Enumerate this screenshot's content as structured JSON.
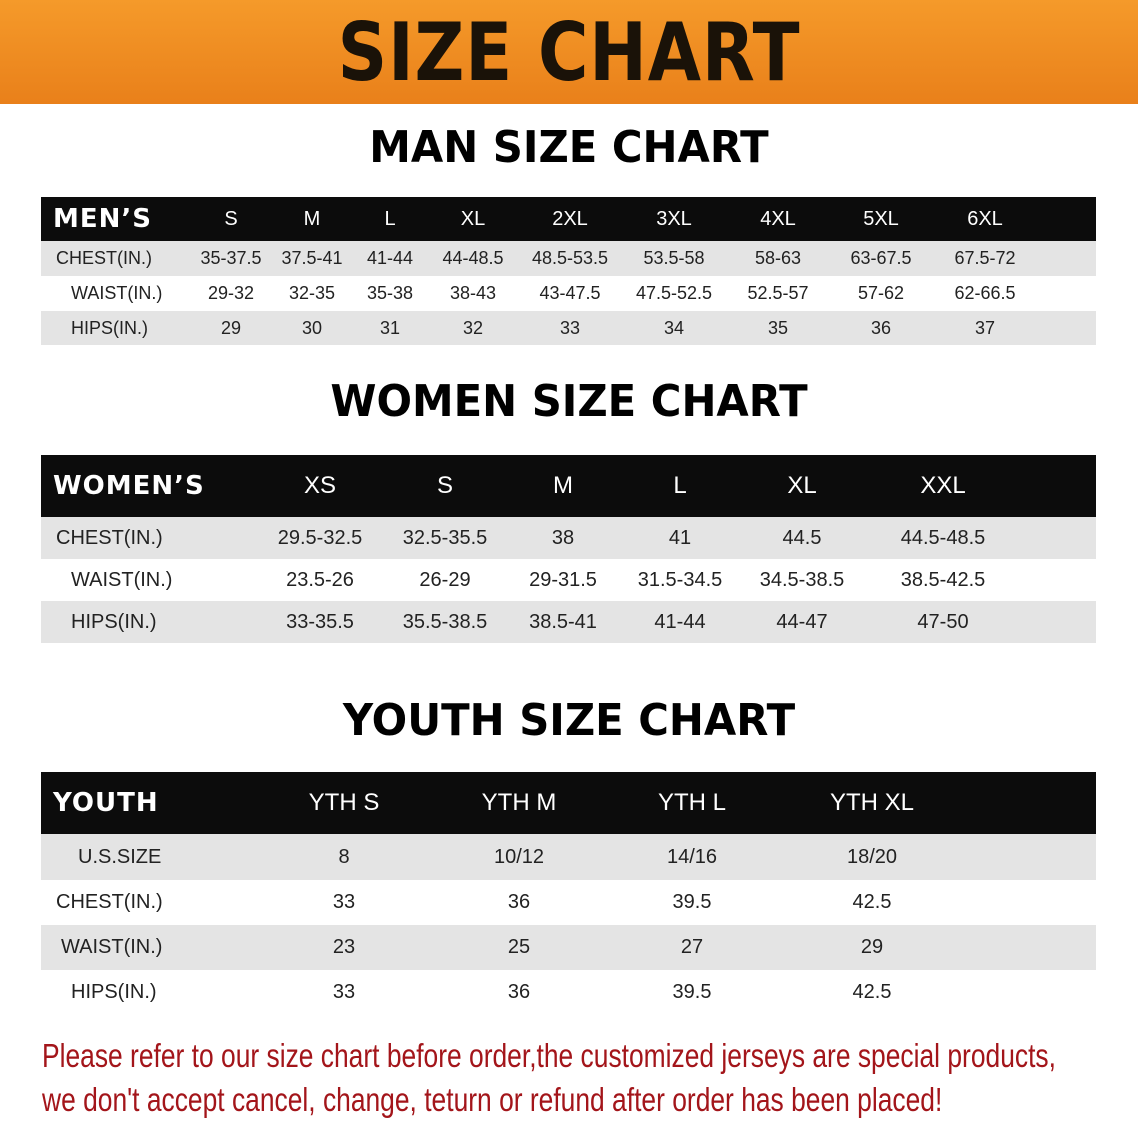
{
  "banner": "SIZE CHART",
  "men": {
    "title": "MAN SIZE CHART",
    "header": "MEN’S",
    "sizes": [
      "S",
      "M",
      "L",
      "XL",
      "2XL",
      "3XL",
      "4XL",
      "5XL",
      "6XL"
    ],
    "rows": [
      {
        "label": "CHEST(IN.)",
        "values": [
          "35-37.5",
          "37.5-41",
          "41-44",
          "44-48.5",
          "48.5-53.5",
          "53.5-58",
          "58-63",
          "63-67.5",
          "67.5-72"
        ]
      },
      {
        "label": "WAIST(IN.)",
        "values": [
          "29-32",
          "32-35",
          "35-38",
          "38-43",
          "43-47.5",
          "47.5-52.5",
          "52.5-57",
          "57-62",
          "62-66.5"
        ]
      },
      {
        "label": "HIPS(IN.)",
        "values": [
          "29",
          "30",
          "31",
          "32",
          "33",
          "34",
          "35",
          "36",
          "37"
        ]
      }
    ]
  },
  "women": {
    "title": "WOMEN SIZE CHART",
    "header": "WOMEN’S",
    "sizes": [
      "XS",
      "S",
      "M",
      "L",
      "XL",
      "XXL"
    ],
    "rows": [
      {
        "label": "CHEST(IN.)",
        "values": [
          "29.5-32.5",
          "32.5-35.5",
          "38",
          "41",
          "44.5",
          "44.5-48.5"
        ]
      },
      {
        "label": "WAIST(IN.)",
        "values": [
          "23.5-26",
          "26-29",
          "29-31.5",
          "31.5-34.5",
          "34.5-38.5",
          "38.5-42.5"
        ]
      },
      {
        "label": "HIPS(IN.)",
        "values": [
          "33-35.5",
          "35.5-38.5",
          "38.5-41",
          "41-44",
          "44-47",
          "47-50"
        ]
      }
    ]
  },
  "youth": {
    "title": "YOUTH SIZE CHART",
    "header": "YOUTH",
    "sizes": [
      "YTH S",
      "YTH M",
      "YTH L",
      "YTH XL"
    ],
    "rows": [
      {
        "label": "U.S.SIZE",
        "values": [
          "8",
          "10/12",
          "14/16",
          "18/20"
        ]
      },
      {
        "label": "CHEST(IN.)",
        "values": [
          "33",
          "36",
          "39.5",
          "42.5"
        ]
      },
      {
        "label": "WAIST(IN.)",
        "values": [
          "23",
          "25",
          "27",
          "29"
        ]
      },
      {
        "label": "HIPS(IN.)",
        "values": [
          "33",
          "36",
          "39.5",
          "42.5"
        ]
      }
    ]
  },
  "footer": {
    "line1": "Please refer to our size chart before order,the customized jerseys are special products,",
    "line2": "we don't accept cancel, change, teturn or refund after order has been placed!"
  },
  "colors": {
    "banner": "#ef8c20",
    "header": "#0c0c0c",
    "row_alt": "#e4e4e4",
    "footer_text": "#a3151a"
  }
}
